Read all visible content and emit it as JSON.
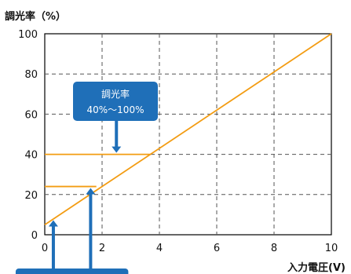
{
  "chart_data": {
    "type": "line",
    "ylabel": "調光率（%）",
    "xlabel": "入力電圧(V)",
    "xlim": [
      0,
      10
    ],
    "ylim": [
      0,
      100
    ],
    "xticks": [
      0,
      2,
      4,
      6,
      8,
      10
    ],
    "yticks": [
      0,
      20,
      40,
      60,
      80,
      100
    ],
    "grid": true,
    "grid_style": "dashed",
    "series": [
      {
        "x": [
          0,
          10
        ],
        "y": [
          5,
          100
        ],
        "color": "#f39c12"
      },
      {
        "x": [
          0,
          3.7
        ],
        "y": [
          40,
          40
        ],
        "color": "#f39c12"
      },
      {
        "x": [
          0,
          1.8
        ],
        "y": [
          24,
          24
        ],
        "color": "#f39c12"
      }
    ],
    "annotations": [
      {
        "text_lines": [
          "調光率",
          "40%〜100%"
        ],
        "points_to": {
          "x": 2.5,
          "y": 40
        }
      }
    ],
    "pointers": [
      {
        "points_to": {
          "x": 0.3,
          "y": 8
        }
      },
      {
        "points_to": {
          "x": 1.6,
          "y": 24
        }
      }
    ],
    "colors": {
      "line": "#f39c12",
      "callout": "#1f6fb8",
      "grid": "#555555"
    }
  }
}
